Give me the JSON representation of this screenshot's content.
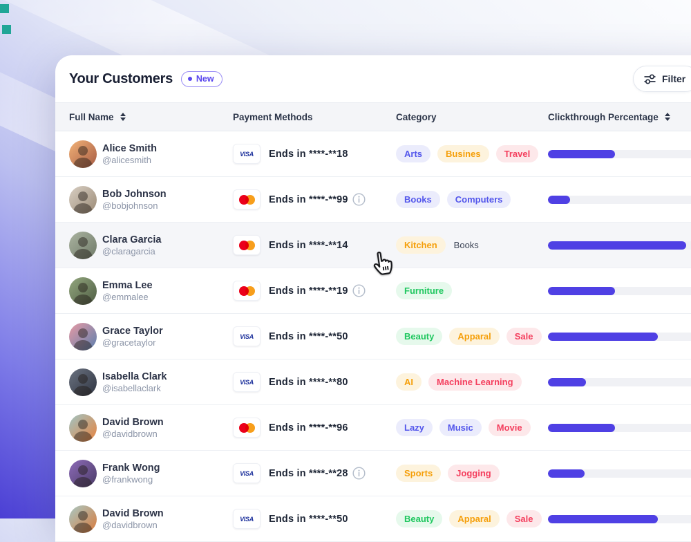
{
  "page": {
    "title": "Your Customers",
    "badge": "New",
    "filter_label": "Filter"
  },
  "cards": {
    "visa_label": "VISA"
  },
  "table": {
    "hovered_row_index": 2,
    "columns": [
      {
        "label": "Full Name",
        "sortable": true
      },
      {
        "label": "Payment Methods",
        "sortable": false
      },
      {
        "label": "Category",
        "sortable": false
      },
      {
        "label": "Clickthrough Percentage",
        "sortable": true
      }
    ],
    "rows": [
      {
        "name": "Alice Smith",
        "handle": "@alicesmith",
        "card": "visa",
        "card_ends": "Ends in ****-**18",
        "has_info": false,
        "tags": [
          {
            "label": "Arts",
            "color": "purple"
          },
          {
            "label": "Busines",
            "color": "orange"
          },
          {
            "label": "Travel",
            "color": "red"
          }
        ],
        "progress": 42,
        "avatar": [
          "#f2b277",
          "#a65b43"
        ]
      },
      {
        "name": "Bob Johnson",
        "handle": "@bobjohnson",
        "card": "mastercard",
        "card_ends": "Ends in ****-**99",
        "has_info": true,
        "tags": [
          {
            "label": "Books",
            "color": "purple"
          },
          {
            "label": "Computers",
            "color": "purple"
          }
        ],
        "progress": 14,
        "avatar": [
          "#d8cfc4",
          "#9b8a75"
        ]
      },
      {
        "name": "Clara Garcia",
        "handle": "@claragarcia",
        "card": "mastercard",
        "card_ends": "Ends in ****-**14",
        "has_info": false,
        "tags": [
          {
            "label": "Kitchen",
            "color": "orange"
          },
          {
            "label": "Books",
            "color": "plain"
          }
        ],
        "progress": 87,
        "avatar": [
          "#aab3a0",
          "#6f7a68"
        ]
      },
      {
        "name": "Emma Lee",
        "handle": "@emmalee",
        "card": "mastercard",
        "card_ends": "Ends in ****-**19",
        "has_info": true,
        "tags": [
          {
            "label": "Furniture",
            "color": "green"
          }
        ],
        "progress": 42,
        "avatar": [
          "#93a77e",
          "#4f5d44"
        ]
      },
      {
        "name": "Grace Taylor",
        "handle": "@gracetaylor",
        "card": "visa",
        "card_ends": "Ends in ****-**50",
        "has_info": false,
        "tags": [
          {
            "label": "Beauty",
            "color": "green"
          },
          {
            "label": "Apparal",
            "color": "orange"
          },
          {
            "label": "Sale",
            "color": "red"
          }
        ],
        "progress": 69,
        "avatar": [
          "#e89aa4",
          "#5b7fae"
        ]
      },
      {
        "name": "Isabella Clark",
        "handle": "@isabellaclark",
        "card": "visa",
        "card_ends": "Ends in ****-**80",
        "has_info": false,
        "tags": [
          {
            "label": "AI",
            "color": "orange"
          },
          {
            "label": "Machine Learning",
            "color": "red"
          }
        ],
        "progress": 24,
        "avatar": [
          "#6b7280",
          "#2f3542"
        ]
      },
      {
        "name": "David Brown",
        "handle": "@davidbrown",
        "card": "mastercard",
        "card_ends": "Ends in ****-**96",
        "has_info": false,
        "tags": [
          {
            "label": "Lazy",
            "color": "purple"
          },
          {
            "label": "Music",
            "color": "purple"
          },
          {
            "label": "Movie",
            "color": "red"
          }
        ],
        "progress": 42,
        "avatar": [
          "#9fc4c4",
          "#e8833f"
        ]
      },
      {
        "name": "Frank Wong",
        "handle": "@frankwong",
        "card": "visa",
        "card_ends": "Ends in ****-**28",
        "has_info": true,
        "tags": [
          {
            "label": "Sports",
            "color": "orange"
          },
          {
            "label": "Jogging",
            "color": "red"
          }
        ],
        "progress": 23,
        "avatar": [
          "#8d6bb8",
          "#4a3b66"
        ]
      },
      {
        "name": "David Brown",
        "handle": "@davidbrown",
        "card": "visa",
        "card_ends": "Ends in ****-**50",
        "has_info": false,
        "tags": [
          {
            "label": "Beauty",
            "color": "green"
          },
          {
            "label": "Apparal",
            "color": "orange"
          },
          {
            "label": "Sale",
            "color": "red"
          }
        ],
        "progress": 69,
        "avatar": [
          "#a8c8c4",
          "#d97a3c"
        ]
      }
    ]
  },
  "tag_colors": {
    "purple": {
      "text": "#5356eb",
      "bg": "#ebecfc"
    },
    "orange": {
      "text": "#f59f0a",
      "bg": "#fdf3dd"
    },
    "red": {
      "text": "#f43f5e",
      "bg": "#fde8ea"
    },
    "green": {
      "text": "#1fc75f",
      "bg": "#e6f9ec"
    },
    "plain": {
      "text": "#3a4254",
      "bg": "transparent"
    }
  },
  "colors": {
    "accent_purple": "#5b48ee",
    "progress_fill": "#4f40e4",
    "progress_track": "#f0f1f5",
    "visa_blue": "#1b2f9b",
    "mastercard_red": "#eb001b",
    "mastercard_orange": "#f79e1b",
    "deco_teal": "#21a697"
  }
}
